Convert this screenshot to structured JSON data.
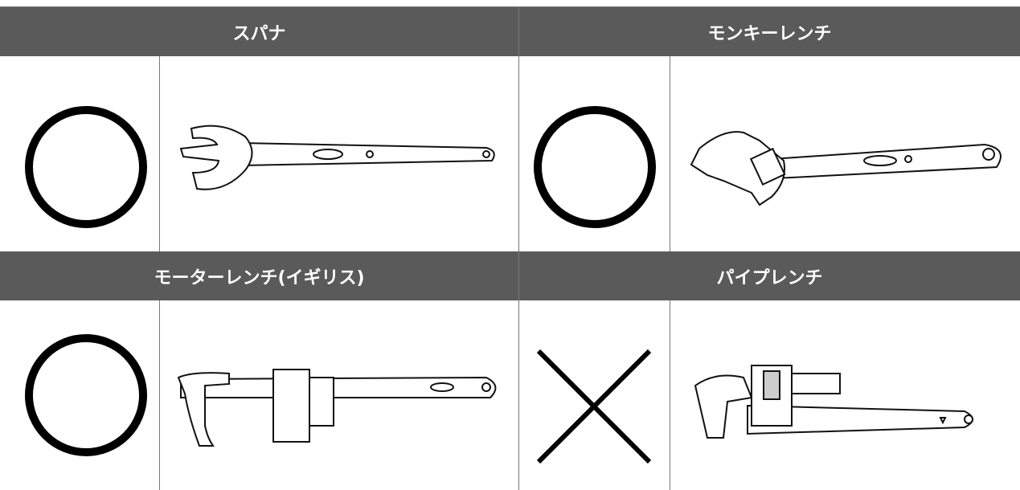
{
  "cells": [
    {
      "title": "スパナ"
    },
    {
      "title": "モンキーレンチ"
    },
    {
      "title": "モーターレンチ(イギリス)"
    },
    {
      "title": "パイプレンチ"
    }
  ]
}
